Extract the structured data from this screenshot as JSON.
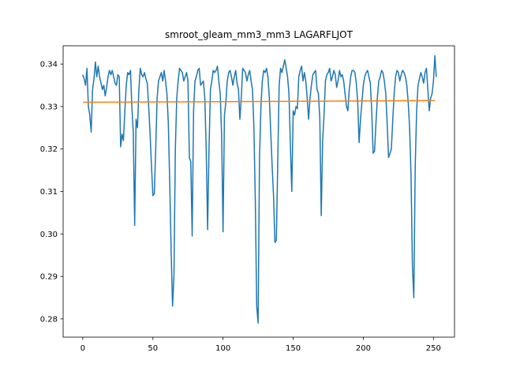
{
  "chart_data": {
    "type": "line",
    "title": "smroot_gleam_mm3_mm3 LAGARFLJOT",
    "xlabel": "",
    "ylabel": "",
    "xlim": [
      -14,
      265
    ],
    "ylim": [
      0.2757,
      0.3443
    ],
    "x_ticks": [
      0,
      50,
      100,
      150,
      200,
      250
    ],
    "y_ticks": [
      0.28,
      0.29,
      0.3,
      0.31,
      0.32,
      0.33,
      0.34
    ],
    "x_tick_labels": [
      "0",
      "50",
      "100",
      "150",
      "200",
      "250"
    ],
    "y_tick_labels": [
      "0.28",
      "0.29",
      "0.30",
      "0.31",
      "0.32",
      "0.33",
      "0.34"
    ],
    "grid": false,
    "legend": "none",
    "series": [
      {
        "color": "#1f77b4",
        "x_start": 0,
        "x_step": 1,
        "values": [
          0.3375,
          0.3365,
          0.335,
          0.339,
          0.33,
          0.328,
          0.324,
          0.334,
          0.3365,
          0.3405,
          0.337,
          0.3395,
          0.337,
          0.3355,
          0.334,
          0.335,
          0.3325,
          0.3345,
          0.337,
          0.3385,
          0.3375,
          0.3385,
          0.337,
          0.3355,
          0.335,
          0.3375,
          0.337,
          0.3205,
          0.3235,
          0.322,
          0.329,
          0.335,
          0.338,
          0.3375,
          0.3385,
          0.33,
          0.324,
          0.302,
          0.327,
          0.325,
          0.334,
          0.339,
          0.3375,
          0.337,
          0.338,
          0.3365,
          0.3355,
          0.33,
          0.3235,
          0.316,
          0.309,
          0.3095,
          0.32,
          0.332,
          0.336,
          0.337,
          0.338,
          0.336,
          0.3385,
          0.336,
          0.333,
          0.326,
          0.312,
          0.296,
          0.283,
          0.29,
          0.32,
          0.332,
          0.336,
          0.339,
          0.3385,
          0.338,
          0.336,
          0.337,
          0.338,
          0.336,
          0.318,
          0.317,
          0.2995,
          0.329,
          0.336,
          0.337,
          0.3385,
          0.339,
          0.335,
          0.3355,
          0.336,
          0.332,
          0.32,
          0.301,
          0.32,
          0.334,
          0.336,
          0.3385,
          0.338,
          0.3385,
          0.3395,
          0.336,
          0.333,
          0.323,
          0.3005,
          0.328,
          0.331,
          0.336,
          0.338,
          0.3385,
          0.337,
          0.335,
          0.337,
          0.3385,
          0.3355,
          0.334,
          0.327,
          0.332,
          0.339,
          0.3385,
          0.338,
          0.336,
          0.3375,
          0.3385,
          0.336,
          0.334,
          0.325,
          0.308,
          0.283,
          0.279,
          0.318,
          0.33,
          0.336,
          0.3385,
          0.338,
          0.339,
          0.337,
          0.332,
          0.324,
          0.316,
          0.309,
          0.298,
          0.2985,
          0.317,
          0.335,
          0.339,
          0.338,
          0.3395,
          0.341,
          0.339,
          0.337,
          0.333,
          0.321,
          0.31,
          0.329,
          0.328,
          0.33,
          0.3295,
          0.337,
          0.3385,
          0.3395,
          0.336,
          0.338,
          0.336,
          0.332,
          0.327,
          0.332,
          0.335,
          0.3375,
          0.338,
          0.3385,
          0.334,
          0.333,
          0.327,
          0.3043,
          0.322,
          0.328,
          0.336,
          0.3375,
          0.338,
          0.339,
          0.336,
          0.337,
          0.3385,
          0.3375,
          0.3345,
          0.336,
          0.3385,
          0.337,
          0.3375,
          0.336,
          0.333,
          0.33,
          0.329,
          0.334,
          0.337,
          0.3385,
          0.3385,
          0.338,
          0.3355,
          0.331,
          0.3215,
          0.327,
          0.331,
          0.335,
          0.337,
          0.338,
          0.3385,
          0.337,
          0.3355,
          0.329,
          0.319,
          0.3195,
          0.326,
          0.332,
          0.336,
          0.337,
          0.3385,
          0.338,
          0.336,
          0.333,
          0.326,
          0.318,
          0.319,
          0.32,
          0.327,
          0.333,
          0.337,
          0.3385,
          0.338,
          0.336,
          0.3375,
          0.3385,
          0.338,
          0.337,
          0.335,
          0.331,
          0.325,
          0.314,
          0.2925,
          0.285,
          0.316,
          0.329,
          0.335,
          0.3365,
          0.338,
          0.337,
          0.3355,
          0.338,
          0.339,
          0.334,
          0.329,
          0.332,
          0.333,
          0.336,
          0.342,
          0.337
        ]
      },
      {
        "color": "#ff7f0e",
        "x": [
          0,
          251
        ],
        "values": [
          0.331,
          0.3314
        ]
      }
    ]
  }
}
